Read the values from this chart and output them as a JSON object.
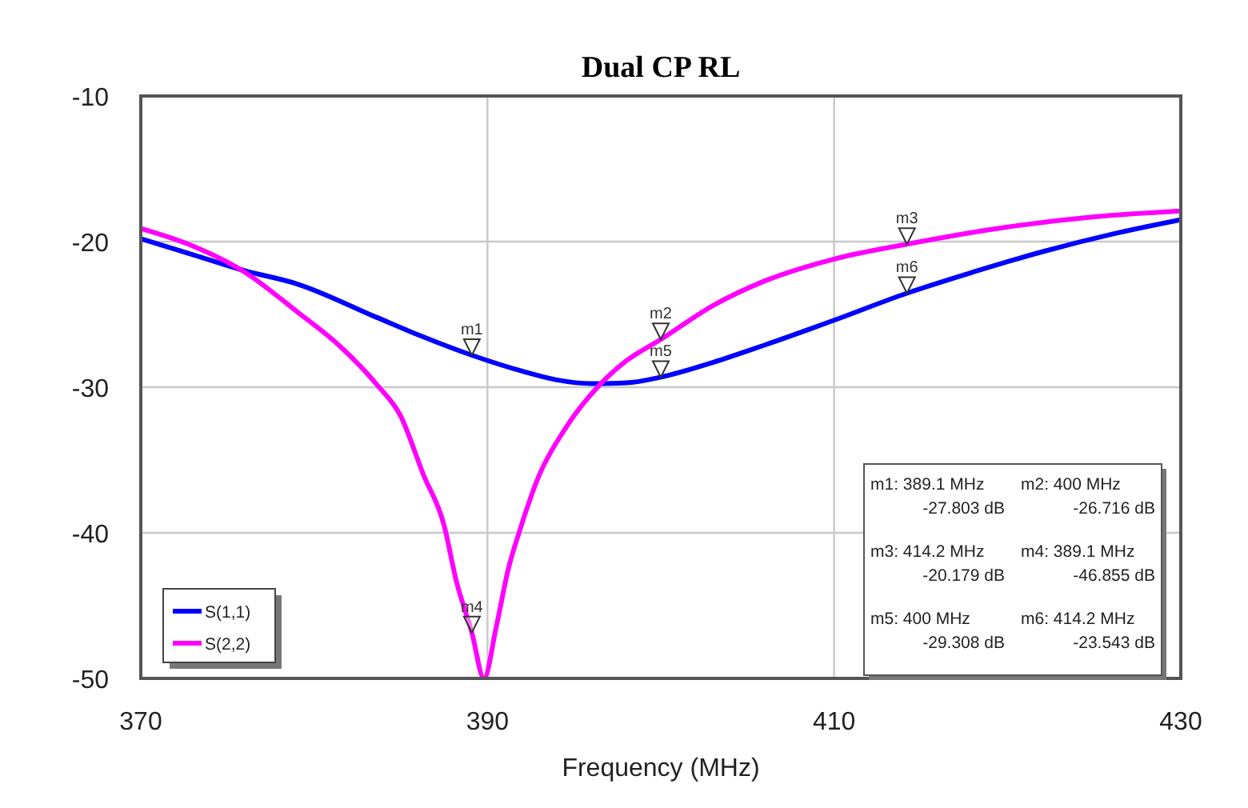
{
  "chart_data": {
    "type": "line",
    "title": "Dual CP RL",
    "xlabel": "Frequency (MHz)",
    "xlim": [
      370,
      430
    ],
    "xticks": [
      370,
      390,
      410,
      430
    ],
    "ylim": [
      -50,
      -10
    ],
    "yticks": [
      -10,
      -20,
      -30,
      -40,
      -50
    ],
    "grid": true,
    "legend": "bottom left",
    "series": [
      {
        "name": "S(1,1)",
        "color": "#0000ff",
        "x": [
          370,
          373,
          376,
          379,
          383.6,
          386,
          389.1,
          392,
          394,
          396,
          398,
          400,
          403,
          406,
          410,
          414.2,
          418,
          422,
          426,
          430
        ],
        "values": [
          -19.8,
          -20.9,
          -22,
          -22.9,
          -25.2,
          -26.4,
          -27.803,
          -28.9,
          -29.5,
          -29.75,
          -29.7,
          -29.308,
          -28.3,
          -27.1,
          -25.4,
          -23.543,
          -22.1,
          -20.7,
          -19.5,
          -18.5
        ]
      },
      {
        "name": "S(2,2)",
        "color": "#ff00ff",
        "x": [
          370,
          373,
          376,
          379,
          381.5,
          383.6,
          385,
          386.3,
          387.5,
          388.2,
          389.1,
          389.8,
          390.5,
          391.2,
          391.9,
          393,
          394.4,
          396.5,
          398,
          400,
          403,
          406,
          410,
          414.2,
          420,
          425,
          430
        ],
        "values": [
          -19.1,
          -20.3,
          -22.1,
          -24.8,
          -27.2,
          -29.8,
          -32,
          -36,
          -39.5,
          -43.3,
          -46.855,
          -50,
          -46.5,
          -42.5,
          -39.7,
          -36,
          -33,
          -29.8,
          -28.2,
          -26.716,
          -24.4,
          -22.7,
          -21.2,
          -20.179,
          -19,
          -18.3,
          -17.9
        ]
      }
    ],
    "annotations": [
      {
        "text": "m1",
        "x": 389.1,
        "y": -27.803
      },
      {
        "text": "m2",
        "x": 400,
        "y": -26.716
      },
      {
        "text": "m3",
        "x": 414.2,
        "y": -20.179
      },
      {
        "text": "m4",
        "x": 389.1,
        "y": -46.855
      },
      {
        "text": "m5",
        "x": 400,
        "y": -29.308
      },
      {
        "text": "m6",
        "x": 414.2,
        "y": -23.543
      },
      "m1: 389.1 MHz",
      "-27.803 dB",
      "m2: 400 MHz",
      "-26.716 dB",
      "m3: 414.2 MHz",
      "-20.179 dB",
      "m4: 389.1 MHz",
      "-46.855 dB",
      "m5: 400 MHz",
      "-29.308 dB",
      "m6: 414.2 MHz",
      "-23.543 dB"
    ]
  }
}
